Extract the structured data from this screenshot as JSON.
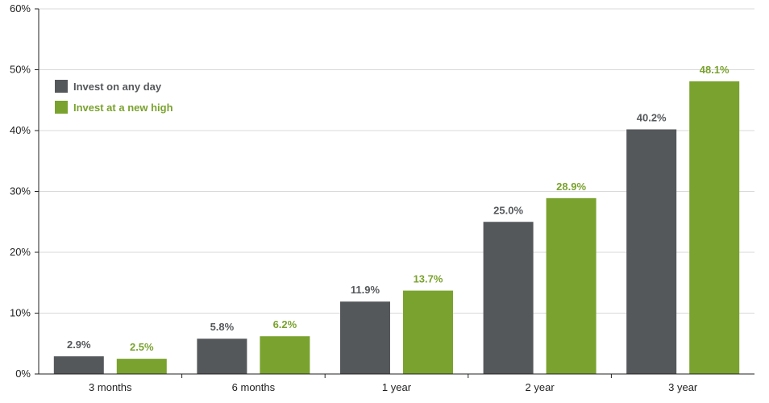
{
  "chart_data": {
    "type": "bar",
    "categories": [
      "3 months",
      "6 months",
      "1 year",
      "2 year",
      "3 year"
    ],
    "series": [
      {
        "name": "Invest on any day",
        "values": [
          2.9,
          5.8,
          11.9,
          25.0,
          40.2
        ],
        "labels": [
          "2.9%",
          "5.8%",
          "11.9%",
          "25.0%",
          "40.2%"
        ],
        "color": "#55585b"
      },
      {
        "name": "Invest at a new high",
        "values": [
          2.5,
          6.2,
          13.7,
          28.9,
          48.1
        ],
        "labels": [
          "2.5%",
          "6.2%",
          "13.7%",
          "28.9%",
          "48.1%"
        ],
        "color": "#7aa22f"
      }
    ],
    "yticks": [
      "0%",
      "10%",
      "20%",
      "30%",
      "40%",
      "50%",
      "60%"
    ],
    "ylim": [
      0,
      60
    ],
    "ystep": 10,
    "grid": true,
    "legend_position": "top-left"
  }
}
